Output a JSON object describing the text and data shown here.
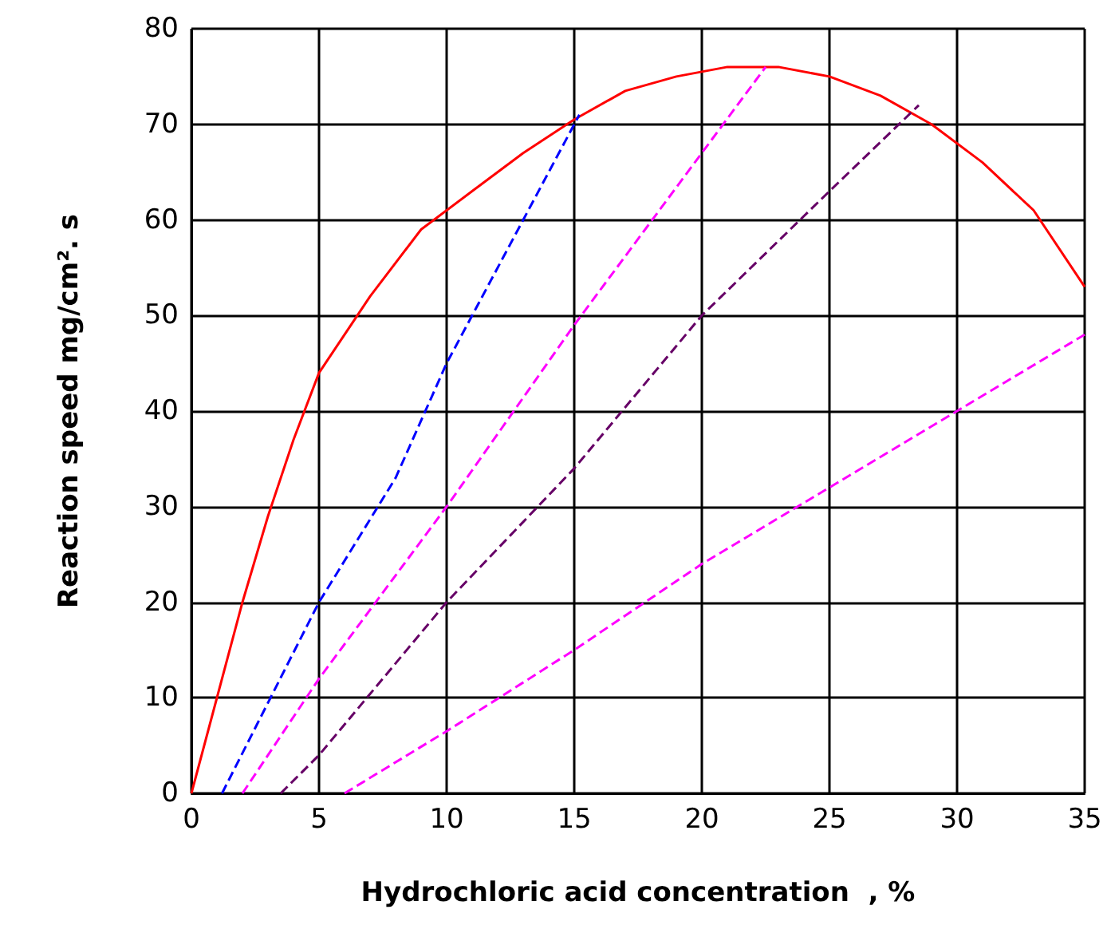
{
  "chart_data": {
    "type": "line",
    "xlabel": "Hydrochloric acid concentration  , %",
    "ylabel": "Reaction speed mg/cm². s",
    "xlim": [
      0,
      35
    ],
    "xticks": [
      0,
      5,
      10,
      15,
      20,
      25,
      30,
      35
    ],
    "ylim": [
      0,
      80
    ],
    "yticks": [
      0,
      10,
      20,
      30,
      40,
      50,
      60,
      70,
      80
    ],
    "grid": true,
    "marker": "none",
    "series": [
      {
        "color": "#ff0000",
        "line_style": "solid",
        "x": [
          0,
          1,
          2,
          3,
          4,
          5,
          7,
          9,
          11,
          13,
          15,
          17,
          19,
          21,
          23,
          25,
          27,
          29,
          31,
          33,
          35
        ],
        "values": [
          0,
          10,
          20,
          29,
          37,
          44,
          52,
          59,
          63,
          67,
          70.5,
          73.5,
          75,
          76,
          76,
          75,
          73,
          70,
          66,
          61,
          53
        ]
      },
      {
        "color": "#0000ff",
        "line_style": "dashed",
        "x": [
          1.2,
          5,
          8,
          10,
          11,
          13,
          15.2
        ],
        "values": [
          0,
          20,
          33,
          45,
          50,
          60,
          71
        ]
      },
      {
        "color": "#ff00ff",
        "line_style": "dashed",
        "x": [
          2,
          5,
          10,
          15,
          20,
          22.5
        ],
        "values": [
          0,
          12,
          30,
          49,
          67,
          76
        ]
      },
      {
        "color": "#660066",
        "line_style": "dashed",
        "x": [
          3.5,
          5,
          10,
          15,
          20,
          25,
          28.5
        ],
        "values": [
          0,
          4,
          20,
          34,
          50,
          63,
          72
        ]
      },
      {
        "color": "#ff00ff",
        "line_style": "dashed",
        "x": [
          6,
          10,
          15,
          20,
          25,
          30,
          35
        ],
        "values": [
          0,
          6.5,
          15,
          24,
          32,
          40,
          48
        ]
      }
    ]
  }
}
